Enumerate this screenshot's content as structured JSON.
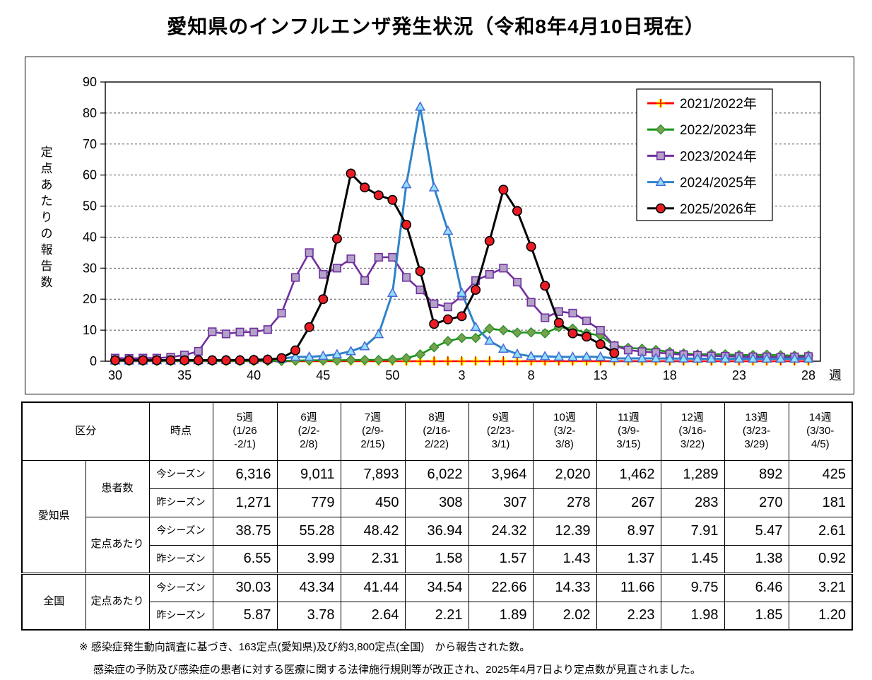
{
  "title": "愛知県のインフルエンザ発生状況（令和8年4月10日現在）",
  "chart_data": {
    "type": "line",
    "title": "愛知県のインフルエンザ発生状況（令和8年4月10日現在）",
    "ylabel": "定点あたりの報告数",
    "week_unit": "週",
    "ylim": [
      0,
      90
    ],
    "yticks": [
      0,
      10,
      20,
      30,
      40,
      50,
      60,
      70,
      80,
      90
    ],
    "xtick_weeks": [
      30,
      35,
      40,
      45,
      50,
      3,
      8,
      13,
      18,
      23,
      28
    ],
    "grid": true,
    "legend_position": "top-right",
    "weeks": [
      30,
      31,
      32,
      33,
      34,
      35,
      36,
      37,
      38,
      39,
      40,
      41,
      42,
      43,
      44,
      45,
      46,
      47,
      48,
      49,
      50,
      51,
      52,
      1,
      2,
      3,
      4,
      5,
      6,
      7,
      8,
      9,
      10,
      11,
      12,
      13,
      14,
      15,
      16,
      17,
      18,
      19,
      20,
      21,
      22,
      23,
      24,
      25,
      26,
      27,
      28
    ],
    "series": [
      {
        "name": "2021/2022年",
        "marker": "plus",
        "line_color": "#FF0000",
        "marker_fill": "#FFFF00",
        "marker_stroke": "#FF0000",
        "values": [
          0,
          0,
          0,
          0,
          0,
          0,
          0,
          0,
          0,
          0,
          0,
          0,
          0,
          0,
          0,
          0,
          0,
          0,
          0,
          0,
          0,
          0,
          0,
          0,
          0,
          0,
          0,
          0,
          0,
          0,
          0,
          0,
          0,
          0,
          0,
          0,
          0,
          0,
          0,
          0,
          0,
          0,
          0,
          0,
          0,
          0,
          0,
          0,
          0,
          0,
          0
        ]
      },
      {
        "name": "2022/2023年",
        "marker": "diamond",
        "line_color": "#169416",
        "marker_fill": "#76A24C",
        "marker_stroke": "#2F8F2F",
        "values": [
          0.1,
          0.1,
          0.1,
          0.1,
          0.1,
          0.1,
          0.1,
          0.1,
          0.1,
          0.1,
          0.1,
          0.1,
          0.1,
          0.2,
          0.3,
          0.3,
          0.3,
          0.4,
          0.4,
          0.4,
          0.5,
          1.0,
          2.2,
          4.5,
          6.5,
          7.5,
          7.5,
          10.5,
          10.0,
          9.2,
          9.3,
          9.0,
          11.0,
          10.5,
          9.0,
          8.3,
          5.0,
          4.3,
          4.0,
          3.6,
          3.0,
          2.5,
          2.2,
          2.3,
          2.2,
          2.0,
          2.0,
          2.1,
          1.9,
          1.8,
          1.8
        ]
      },
      {
        "name": "2023/2024年",
        "marker": "square",
        "line_color": "#7030A0",
        "marker_fill": "#B3A2C7",
        "marker_stroke": "#7030A0",
        "values": [
          1.0,
          0.9,
          1.0,
          1.0,
          1.3,
          2.0,
          3.2,
          9.5,
          8.8,
          9.4,
          9.4,
          10.2,
          15.5,
          27,
          35,
          28,
          30,
          33,
          26,
          33.5,
          33.5,
          27,
          23,
          18.5,
          17.5,
          21,
          26,
          28,
          30,
          25.5,
          19,
          14,
          16,
          15.5,
          13,
          10,
          5,
          3.6,
          3.1,
          2.8,
          2.4,
          2.1,
          1.9,
          1.7,
          1.6,
          1.5,
          1.4,
          1.4,
          1.3,
          1.4,
          1.5
        ]
      },
      {
        "name": "2024/2025年",
        "marker": "triangle",
        "line_color": "#2E83C8",
        "marker_fill": "#8EDFF9",
        "marker_stroke": "#4A68D8",
        "values": [
          0.2,
          0.2,
          0.2,
          0.3,
          0.2,
          0.3,
          0.3,
          0.3,
          0.4,
          0.4,
          0.5,
          0.6,
          0.8,
          1.4,
          1.4,
          1.7,
          2.2,
          3.2,
          4.8,
          8.7,
          22,
          57,
          82,
          56,
          42,
          22,
          11,
          6.55,
          3.99,
          2.31,
          1.58,
          1.57,
          1.43,
          1.37,
          1.45,
          1.38,
          0.92,
          0.9,
          0.9,
          0.9,
          0.85,
          0.85,
          0.8,
          0.8,
          0.8,
          0.8,
          0.8,
          0.8,
          0.8,
          0.8,
          0.8
        ]
      },
      {
        "name": "2025/2026年",
        "marker": "circle",
        "line_color": "#000000",
        "marker_fill": "#EB1C24",
        "marker_stroke": "#000000",
        "values": [
          0.3,
          0.3,
          0.3,
          0.3,
          0.3,
          0.3,
          0.3,
          0.3,
          0.3,
          0.3,
          0.4,
          0.5,
          1.0,
          3.5,
          11,
          20,
          39.5,
          60.5,
          56,
          53.5,
          52,
          44,
          29,
          12,
          13.5,
          14.5,
          23,
          38.75,
          55.28,
          48.42,
          36.94,
          24.32,
          12.39,
          8.97,
          7.91,
          5.47,
          2.61,
          null,
          null,
          null,
          null,
          null,
          null,
          null,
          null,
          null,
          null,
          null,
          null,
          null,
          null
        ]
      }
    ]
  },
  "table": {
    "corner_label": "区分",
    "time_label": "時点",
    "week_headers": [
      {
        "label": "5週",
        "range": [
          "(1/26",
          "-2/1)"
        ]
      },
      {
        "label": "6週",
        "range": [
          "(2/2-",
          "2/8)"
        ]
      },
      {
        "label": "7週",
        "range": [
          "(2/9-",
          "2/15)"
        ]
      },
      {
        "label": "8週",
        "range": [
          "(2/16-",
          "2/22)"
        ]
      },
      {
        "label": "9週",
        "range": [
          "(2/23-",
          "3/1)"
        ]
      },
      {
        "label": "10週",
        "range": [
          "(3/2-",
          "3/8)"
        ]
      },
      {
        "label": "11週",
        "range": [
          "(3/9-",
          "3/15)"
        ]
      },
      {
        "label": "12週",
        "range": [
          "(3/16-",
          "3/22)"
        ]
      },
      {
        "label": "13週",
        "range": [
          "(3/23-",
          "3/29)"
        ]
      },
      {
        "label": "14週",
        "range": [
          "(3/30-",
          "4/5)"
        ]
      }
    ],
    "sections": [
      {
        "region": "愛知県",
        "groups": [
          {
            "label": "患者数",
            "rows": [
              {
                "season": "今シーズン",
                "values": [
                  "6,316",
                  "9,011",
                  "7,893",
                  "6,022",
                  "3,964",
                  "2,020",
                  "1,462",
                  "1,289",
                  "892",
                  "425"
                ]
              },
              {
                "season": "昨シーズン",
                "values": [
                  "1,271",
                  "779",
                  "450",
                  "308",
                  "307",
                  "278",
                  "267",
                  "283",
                  "270",
                  "181"
                ]
              }
            ]
          },
          {
            "label": "定点あたり",
            "rows": [
              {
                "season": "今シーズン",
                "values": [
                  "38.75",
                  "55.28",
                  "48.42",
                  "36.94",
                  "24.32",
                  "12.39",
                  "8.97",
                  "7.91",
                  "5.47",
                  "2.61"
                ]
              },
              {
                "season": "昨シーズン",
                "values": [
                  "6.55",
                  "3.99",
                  "2.31",
                  "1.58",
                  "1.57",
                  "1.43",
                  "1.37",
                  "1.45",
                  "1.38",
                  "0.92"
                ]
              }
            ]
          }
        ]
      },
      {
        "region": "全国",
        "groups": [
          {
            "label": "定点あたり",
            "rows": [
              {
                "season": "今シーズン",
                "values": [
                  "30.03",
                  "43.34",
                  "41.44",
                  "34.54",
                  "22.66",
                  "14.33",
                  "11.66",
                  "9.75",
                  "6.46",
                  "3.21"
                ]
              },
              {
                "season": "昨シーズン",
                "values": [
                  "5.87",
                  "3.78",
                  "2.64",
                  "2.21",
                  "1.89",
                  "2.02",
                  "2.23",
                  "1.98",
                  "1.85",
                  "1.20"
                ]
              }
            ]
          }
        ]
      }
    ]
  },
  "footnote": {
    "mark": "※",
    "line1": "感染症発生動向調査に基づき、163定点(愛知県)及び約3,800定点(全国)　から報告された数。",
    "line2": "感染症の予防及び感染症の患者に対する医療に関する法律施行規則等が改正され、2025年4月7日より定点数が見直されました。"
  }
}
